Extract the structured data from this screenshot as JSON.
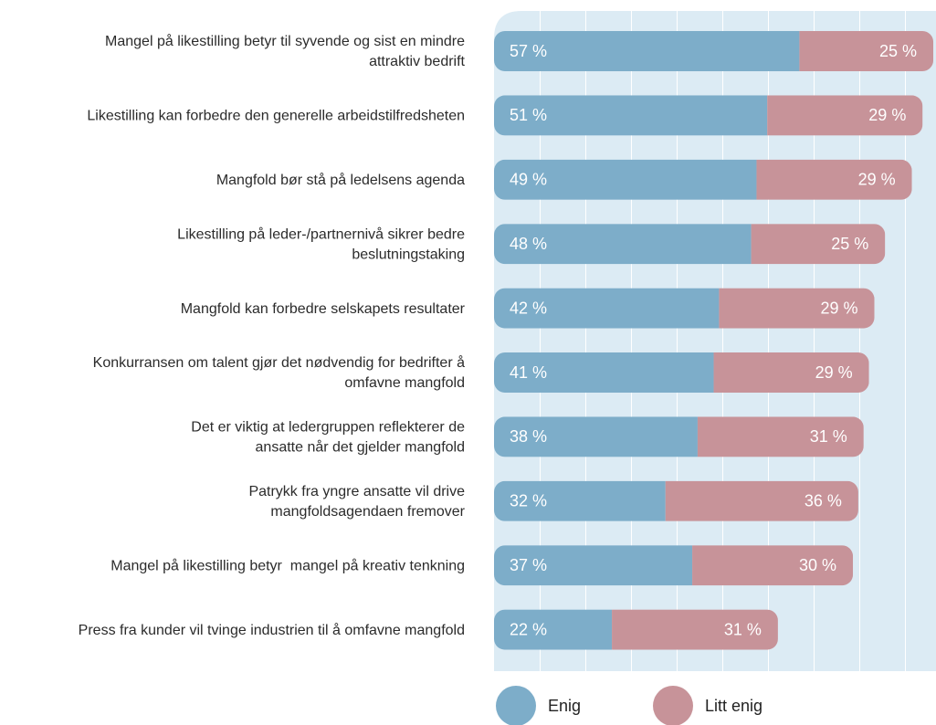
{
  "chart_data": {
    "type": "stacked-bar-horizontal",
    "categories": [
      [
        "Mangel på likestilling betyr til syvende og sist en mindre",
        "attraktiv bedrift"
      ],
      [
        "Likestilling kan forbedre den generelle arbeidstilfredsheten"
      ],
      [
        "Mangfold bør stå på ledelsens agenda"
      ],
      [
        "Likestilling på leder-/partnernivå sikrer bedre",
        "beslutningstaking"
      ],
      [
        "Mangfold kan forbedre selskapets resultater"
      ],
      [
        "Konkurransen om talent gjør det nødvendig for bedrifter å",
        "omfavne mangfold"
      ],
      [
        "Det er viktig at ledergruppen reflekterer de",
        "ansatte når det gjelder mangfold"
      ],
      [
        "Patrykk fra yngre ansatte vil drive",
        "mangfoldsagendaen fremover"
      ],
      [
        "Mangel på likestilling betyr  mangel på kreativ tenkning"
      ],
      [
        "Press fra kunder vil tvinge industrien til å omfavne mangfold"
      ]
    ],
    "series": [
      {
        "name": "Enig",
        "color": "#7dadc9",
        "values": [
          57,
          51,
          49,
          48,
          42,
          41,
          38,
          32,
          37,
          22
        ],
        "value_labels": [
          "57 %",
          "51 %",
          "49 %",
          "48 %",
          "42 %",
          "41 %",
          "38 %",
          "32 %",
          "37 %",
          "22 %"
        ]
      },
      {
        "name": "Litt enig",
        "color": "#c79399",
        "values": [
          25,
          29,
          29,
          25,
          29,
          29,
          31,
          36,
          30,
          31
        ],
        "value_labels": [
          "25 %",
          "29 %",
          "29 %",
          "25 %",
          "29 %",
          "29 %",
          "31 %",
          "36 %",
          "30 %",
          "31 %"
        ]
      }
    ],
    "xlim": [
      0,
      82.5
    ]
  }
}
